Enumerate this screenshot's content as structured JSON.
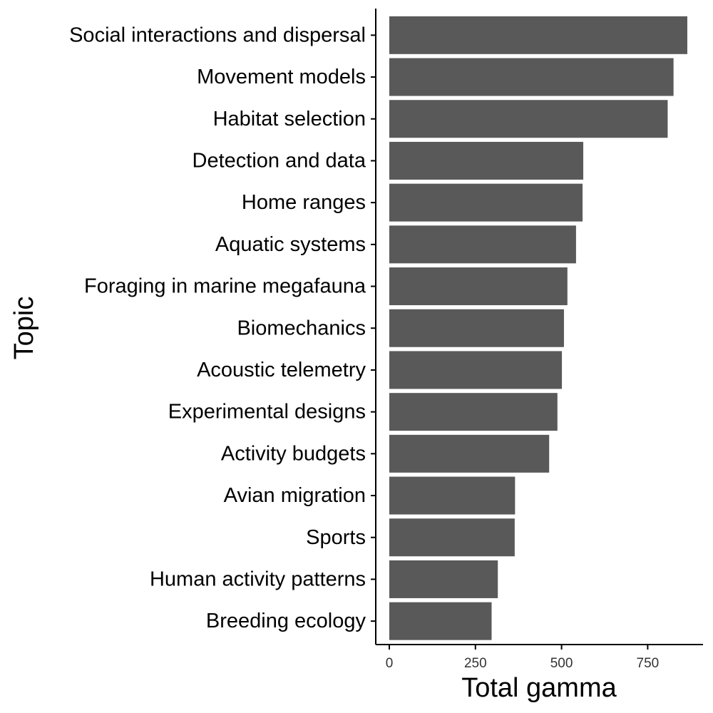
{
  "chart_data": {
    "type": "bar",
    "orientation": "horizontal",
    "title": "",
    "xlabel": "Total gamma",
    "ylabel": "Topic",
    "xlim": [
      0,
      900
    ],
    "xticks": [
      0,
      250,
      500,
      750
    ],
    "xtick_labels": [
      "0",
      "250",
      "500",
      "750"
    ],
    "grid": false,
    "bar_color": "#595959",
    "categories": [
      "Social interactions and dispersal",
      "Movement models",
      "Habitat selection",
      "Detection and data",
      "Home ranges",
      "Aquatic systems",
      "Foraging in marine megafauna",
      "Biomechanics",
      "Acoustic telemetry",
      "Experimental designs",
      "Activity budgets",
      "Avian migration",
      "Sports",
      "Human activity patterns",
      "Breeding ecology"
    ],
    "values": [
      865,
      825,
      808,
      563,
      561,
      542,
      517,
      507,
      501,
      488,
      464,
      365,
      364,
      315,
      297
    ]
  }
}
